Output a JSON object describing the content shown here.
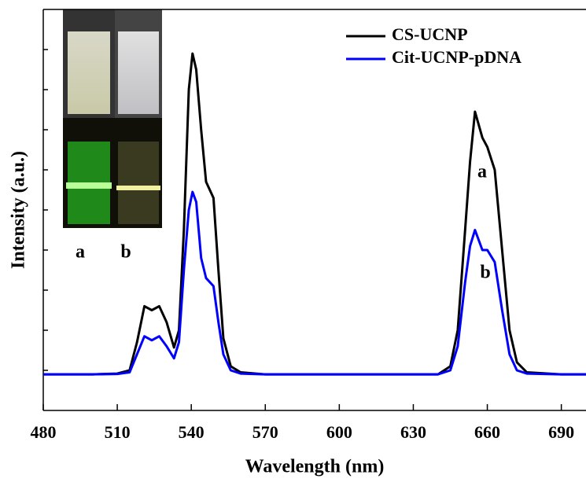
{
  "chart_data": {
    "type": "line",
    "xlabel": "Wavelength (nm)",
    "ylabel": "Intensity (a.u.)",
    "x": [
      480,
      500,
      510,
      515,
      518,
      521,
      524,
      527,
      530,
      533,
      535,
      537,
      539,
      540.5,
      542,
      544,
      546,
      549,
      551,
      553,
      556,
      560,
      570,
      600,
      640,
      645,
      648,
      651,
      653,
      655,
      658,
      660,
      663,
      666,
      669,
      672,
      676,
      690,
      700
    ],
    "series": [
      {
        "name": "CS-UCNP",
        "color": "#000000",
        "values": [
          0.09,
          0.09,
          0.092,
          0.1,
          0.17,
          0.26,
          0.25,
          0.26,
          0.22,
          0.157,
          0.2,
          0.45,
          0.8,
          0.89,
          0.85,
          0.7,
          0.57,
          0.53,
          0.35,
          0.18,
          0.11,
          0.095,
          0.09,
          0.09,
          0.09,
          0.11,
          0.2,
          0.45,
          0.62,
          0.745,
          0.68,
          0.657,
          0.6,
          0.4,
          0.2,
          0.12,
          0.095,
          0.09,
          0.09
        ]
      },
      {
        "name": "Cit-UCNP-pDNA",
        "color": "#0000ff",
        "values": [
          0.09,
          0.09,
          0.091,
          0.095,
          0.14,
          0.185,
          0.175,
          0.185,
          0.16,
          0.13,
          0.17,
          0.35,
          0.5,
          0.545,
          0.52,
          0.38,
          0.33,
          0.31,
          0.22,
          0.14,
          0.1,
          0.092,
          0.09,
          0.09,
          0.09,
          0.1,
          0.16,
          0.32,
          0.41,
          0.45,
          0.4,
          0.4,
          0.37,
          0.25,
          0.14,
          0.1,
          0.092,
          0.09,
          0.09
        ]
      }
    ],
    "xlim": [
      480,
      700
    ],
    "xticks": [
      480,
      510,
      540,
      570,
      600,
      630,
      660,
      690
    ],
    "ylim": [
      0,
      1
    ],
    "yticks": [
      0.1,
      0.2,
      0.3,
      0.4,
      0.5,
      0.6,
      0.7,
      0.8,
      0.9
    ],
    "legend": "upper right",
    "annotations": [
      "a",
      "b",
      "a",
      "b"
    ]
  }
}
